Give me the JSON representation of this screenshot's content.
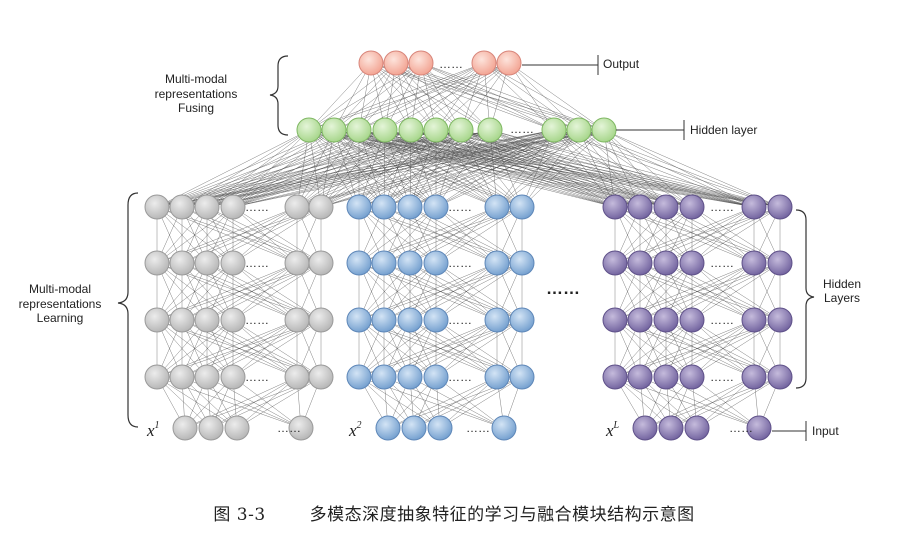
{
  "labels": {
    "output": "Output",
    "hidden_layer": "Hidden layer",
    "fusing_line1": "Multi-modal",
    "fusing_line2": "representations",
    "fusing_line3": "Fusing",
    "learning_line1": "Multi-modal",
    "learning_line2": "representations",
    "learning_line3": "Learning",
    "hidden_layers_line1": "Hidden",
    "hidden_layers_line2": "Layers",
    "input": "Input",
    "ellipsis": "……",
    "x_base": "x",
    "x1_sup": "1",
    "x2_sup": "2",
    "xL_sup": "L"
  },
  "caption": {
    "number": "图 3-3",
    "title": "多模态深度抽象特征的学习与融合模块结构示意图"
  },
  "colors": {
    "output_fill": "#f7b9aa",
    "output_stroke": "#d8857a",
    "fusion_fill": "#bfe3a8",
    "fusion_stroke": "#7fb863",
    "gray_fill": "#c9c9c9",
    "gray_stroke": "#9a9a9a",
    "blue_fill": "#8fb4dc",
    "blue_stroke": "#5e87b8",
    "purple_fill": "#8e7fb3",
    "purple_stroke": "#5f5189",
    "edge": "#4a4a4a"
  }
}
